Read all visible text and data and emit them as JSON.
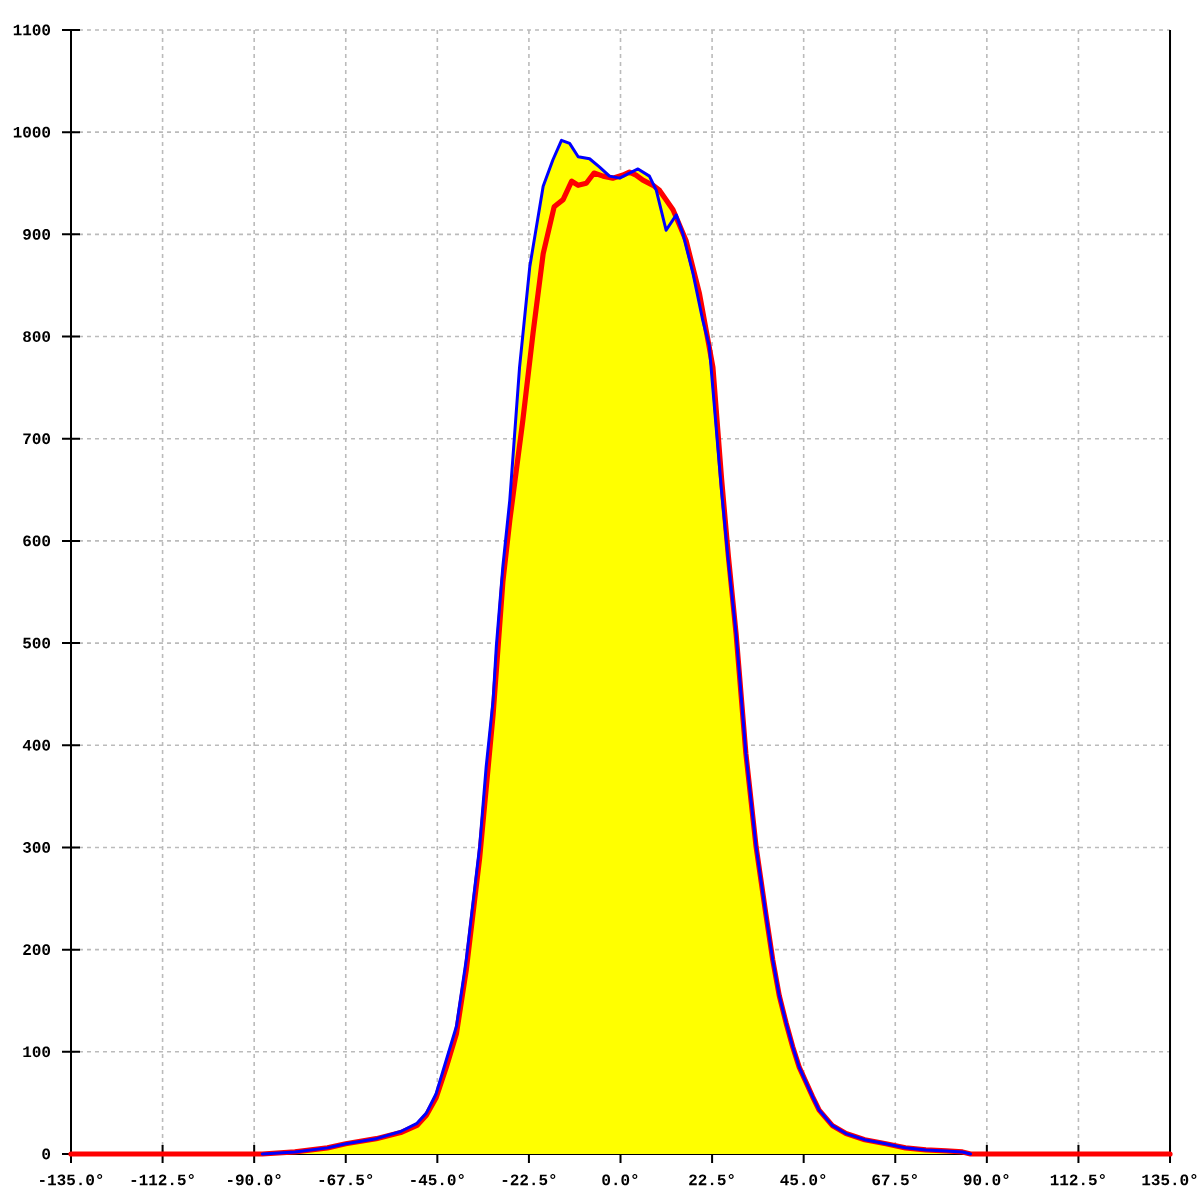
{
  "chart_data": {
    "type": "area",
    "x": [
      -88,
      -80,
      -72,
      -67.5,
      -60,
      -54,
      -50,
      -47.7,
      -45.3,
      -42.8,
      -40.3,
      -37.9,
      -34.6,
      -33,
      -31.3,
      -30.5,
      -28.9,
      -27.2,
      -24.8,
      -22.3,
      -19,
      -16.6,
      -14.5,
      -12.5,
      -10.4,
      -7.6,
      -5.2,
      -2.7,
      -0.2,
      2.2,
      4.3,
      7.1,
      8.8,
      11.2,
      13.7,
      15.3,
      17.8,
      20.2,
      21.8,
      24.8,
      26.5,
      28.4,
      30.8,
      33.3,
      35.7,
      37.4,
      39,
      40.7,
      42.3,
      43.9,
      47.2,
      48.8,
      52,
      55.4,
      60,
      65.2,
      70,
      75,
      80,
      84,
      86
    ],
    "series": [
      {
        "color": "#ffff00",
        "x": [
          -135,
          -88,
          -80,
          -72,
          -67.5,
          -60,
          -54,
          -50,
          -47.7,
          -45.3,
          -42.8,
          -40.3,
          -37.9,
          -34.6,
          -33,
          -31.3,
          -30.5,
          -28.9,
          -27.2,
          -24.8,
          -22.3,
          -19,
          -16.6,
          -14.5,
          -12.5,
          -10.4,
          -7.6,
          -5.2,
          -2.7,
          -0.2,
          2.2,
          4.3,
          7.1,
          8.8,
          11.2,
          13.7,
          15.3,
          17.8,
          19.4,
          20.2,
          21.8,
          22.7,
          24.8,
          26.5,
          28.4,
          30.8,
          33.3,
          35.7,
          37.4,
          39,
          40.7,
          42.3,
          43.9,
          47.2,
          48.8,
          52,
          55.4,
          60,
          65.2,
          70,
          75,
          80,
          84,
          86,
          135
        ],
        "values": [
          0,
          0,
          2,
          6,
          10,
          15,
          22,
          30,
          40,
          59,
          92,
          125,
          190,
          301,
          379,
          444,
          497,
          575,
          640,
          770,
          868,
          947,
          973,
          992,
          989,
          976,
          974,
          966,
          957,
          957,
          961,
          964,
          957,
          945,
          934,
          919,
          902,
          867,
          842,
          825,
          791,
          770,
          662,
          585,
          509,
          392,
          301,
          235,
          190,
          155,
          128,
          105,
          85,
          56,
          43,
          28,
          20,
          14,
          10,
          6,
          4,
          3,
          2,
          0,
          0
        ]
      },
      {
        "type": "line",
        "color": "#ff0000",
        "x": [
          -135,
          -88,
          -80,
          -72,
          -67.5,
          -60,
          -54,
          -50,
          -47.7,
          -45.3,
          -42.8,
          -40.3,
          -37.9,
          -34.6,
          -31.3,
          -28.9,
          -27.2,
          -24,
          -21.5,
          -19,
          -16.3,
          -14.1,
          -12,
          -10.4,
          -8.4,
          -6.5,
          -4.3,
          -1.9,
          0.6,
          2.2,
          3.8,
          5.5,
          8,
          9.6,
          12.9,
          16.1,
          19.4,
          22.7,
          24.8,
          26.5,
          28.4,
          30.8,
          33.3,
          35.7,
          37.4,
          39,
          40.7,
          42.3,
          43.9,
          47.2,
          48.8,
          52,
          55.4,
          60,
          65.2,
          70,
          75,
          80,
          84,
          86,
          135
        ],
        "values": [
          0,
          0,
          2,
          6,
          10,
          15,
          21,
          28,
          38,
          55,
          85,
          118,
          180,
          290,
          430,
          560,
          620,
          718,
          803,
          881,
          927,
          934,
          952,
          948,
          950,
          960,
          957,
          955,
          958,
          961,
          958,
          953,
          948,
          943,
          924,
          894,
          842,
          770,
          662,
          585,
          509,
          392,
          301,
          235,
          190,
          155,
          128,
          105,
          85,
          56,
          43,
          28,
          20,
          14,
          10,
          6,
          4,
          3,
          2,
          0,
          0
        ]
      },
      {
        "type": "line",
        "color": "#0000ff",
        "values": [
          0,
          2,
          6,
          10,
          15,
          22,
          30,
          40,
          59,
          92,
          125,
          190,
          301,
          379,
          444,
          497,
          575,
          640,
          770,
          868,
          947,
          973,
          992,
          989,
          976,
          974,
          966,
          957,
          955,
          960,
          964,
          957,
          943,
          904,
          919,
          901,
          862,
          816,
          791,
          650,
          580,
          509,
          392,
          301,
          235,
          190,
          155,
          128,
          105,
          85,
          56,
          43,
          28,
          20,
          14,
          10,
          6,
          4,
          3,
          2,
          0
        ]
      }
    ],
    "xlim": [
      -135,
      135
    ],
    "ylim": [
      0,
      1100
    ],
    "xticks": [
      {
        "value": -135,
        "label": "-135.0°"
      },
      {
        "value": -112.5,
        "label": "-112.5°"
      },
      {
        "value": -90,
        "label": "-90.0°"
      },
      {
        "value": -67.5,
        "label": "-67.5°"
      },
      {
        "value": -45,
        "label": "-45.0°"
      },
      {
        "value": -22.5,
        "label": "-22.5°"
      },
      {
        "value": 0,
        "label": "0.0°"
      },
      {
        "value": 22.5,
        "label": "22.5°"
      },
      {
        "value": 45,
        "label": "45.0°"
      },
      {
        "value": 67.5,
        "label": "67.5°"
      },
      {
        "value": 90,
        "label": "90.0°"
      },
      {
        "value": 112.5,
        "label": "112.5°"
      },
      {
        "value": 135,
        "label": "135.0°"
      }
    ],
    "yticks": [
      0,
      100,
      200,
      300,
      400,
      500,
      600,
      700,
      800,
      900,
      1000,
      1100
    ],
    "grid": true
  }
}
